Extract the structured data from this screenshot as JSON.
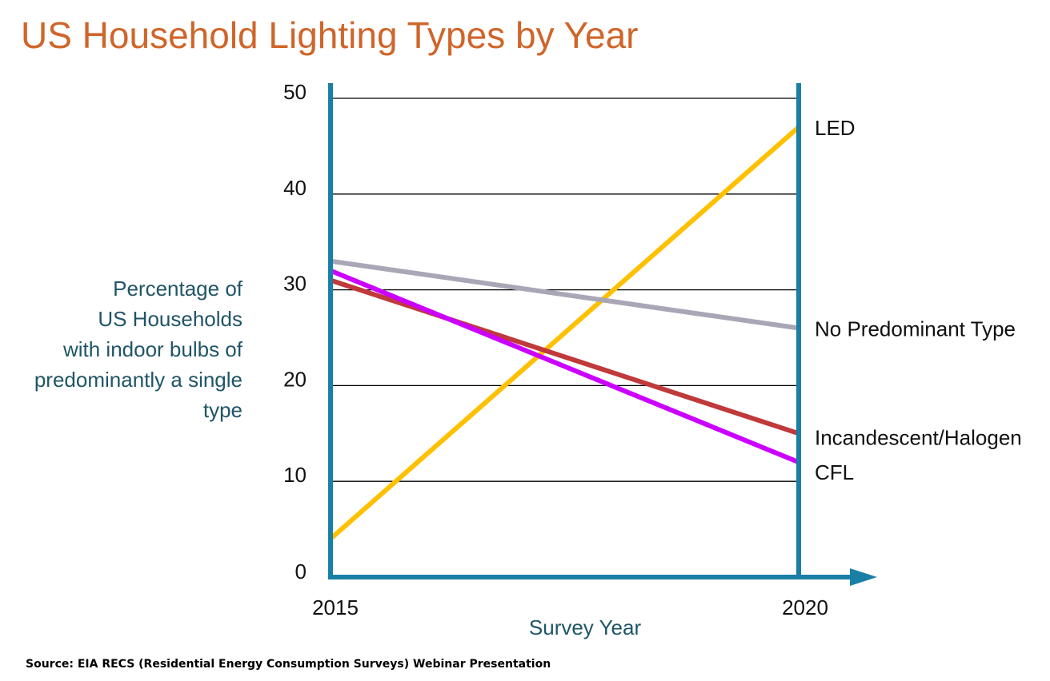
{
  "chart_data": {
    "type": "line",
    "title": "US Household Lighting Types by Year",
    "xlabel": "Survey Year",
    "ylabel_lines": [
      "Percentage of",
      "US Households",
      "with indoor bulbs of",
      "predominantly a single",
      "type"
    ],
    "x": [
      2015,
      2020
    ],
    "x_tick_labels": [
      "2015",
      "2020"
    ],
    "ylim": [
      0,
      50
    ],
    "y_ticks": [
      0,
      10,
      20,
      30,
      40,
      50
    ],
    "y_tick_labels": [
      "0",
      "10",
      "20",
      "30",
      "40",
      "50"
    ],
    "grid": true,
    "legend_position": "right, inline at series ends",
    "series": [
      {
        "name": "LED",
        "values": [
          4,
          47
        ],
        "color": "#FFC000"
      },
      {
        "name": "No Predominant Type",
        "values": [
          33,
          26
        ],
        "color": "#A9A6B6"
      },
      {
        "name": "Incandescent/Halogen",
        "values": [
          31,
          15
        ],
        "color": "#C0393B"
      },
      {
        "name": "CFL",
        "values": [
          32,
          12
        ],
        "color": "#CC00FF"
      }
    ],
    "source": "Source: EIA RECS (Residential Energy Consumption Surveys) Webinar Presentation"
  },
  "colors": {
    "title": "#D0652A",
    "axis": "#1A7FA6",
    "axis_title": "#1F5566",
    "grid": "#000000",
    "text": "#111111"
  }
}
